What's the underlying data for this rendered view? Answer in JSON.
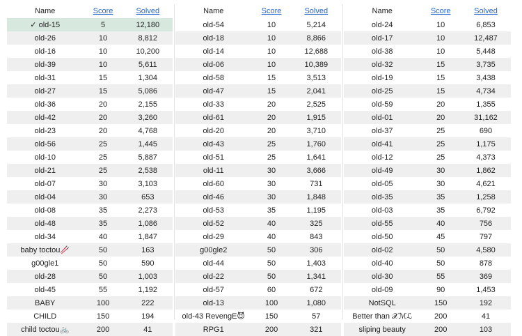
{
  "headers": {
    "name": "Name",
    "score": "Score",
    "solved": "Solved"
  },
  "columns": [
    [
      {
        "name": "✓ old-15",
        "score": "5",
        "solved": "12,180",
        "is_solved": true
      },
      {
        "name": "old-26",
        "score": "10",
        "solved": "8,812"
      },
      {
        "name": "old-16",
        "score": "10",
        "solved": "10,200"
      },
      {
        "name": "old-39",
        "score": "10",
        "solved": "5,611"
      },
      {
        "name": "old-31",
        "score": "15",
        "solved": "1,304"
      },
      {
        "name": "old-27",
        "score": "15",
        "solved": "5,086"
      },
      {
        "name": "old-36",
        "score": "20",
        "solved": "2,155"
      },
      {
        "name": "old-42",
        "score": "20",
        "solved": "3,260"
      },
      {
        "name": "old-23",
        "score": "20",
        "solved": "4,768"
      },
      {
        "name": "old-56",
        "score": "25",
        "solved": "1,445"
      },
      {
        "name": "old-10",
        "score": "25",
        "solved": "5,887"
      },
      {
        "name": "old-21",
        "score": "25",
        "solved": "2,538"
      },
      {
        "name": "old-07",
        "score": "30",
        "solved": "3,103"
      },
      {
        "name": "old-04",
        "score": "30",
        "solved": "653"
      },
      {
        "name": "old-08",
        "score": "35",
        "solved": "2,273"
      },
      {
        "name": "old-48",
        "score": "35",
        "solved": "1,086"
      },
      {
        "name": "old-34",
        "score": "40",
        "solved": "1,847"
      },
      {
        "name": "baby toctou🥢",
        "score": "50",
        "solved": "163"
      },
      {
        "name": "g00gle1",
        "score": "50",
        "solved": "590"
      },
      {
        "name": "old-28",
        "score": "50",
        "solved": "1,003"
      },
      {
        "name": "old-45",
        "score": "55",
        "solved": "1,192"
      },
      {
        "name": "BABY",
        "score": "100",
        "solved": "222"
      },
      {
        "name": "CHILD",
        "score": "150",
        "solved": "194"
      },
      {
        "name": "child toctou🚲",
        "score": "200",
        "solved": "41"
      }
    ],
    [
      {
        "name": "old-54",
        "score": "10",
        "solved": "5,214"
      },
      {
        "name": "old-18",
        "score": "10",
        "solved": "8,866"
      },
      {
        "name": "old-14",
        "score": "10",
        "solved": "12,688"
      },
      {
        "name": "old-06",
        "score": "10",
        "solved": "10,389"
      },
      {
        "name": "old-58",
        "score": "15",
        "solved": "3,513"
      },
      {
        "name": "old-47",
        "score": "15",
        "solved": "2,041"
      },
      {
        "name": "old-33",
        "score": "20",
        "solved": "2,525"
      },
      {
        "name": "old-61",
        "score": "20",
        "solved": "1,915"
      },
      {
        "name": "old-20",
        "score": "20",
        "solved": "3,710"
      },
      {
        "name": "old-43",
        "score": "25",
        "solved": "1,760"
      },
      {
        "name": "old-51",
        "score": "25",
        "solved": "1,641"
      },
      {
        "name": "old-11",
        "score": "30",
        "solved": "3,666"
      },
      {
        "name": "old-60",
        "score": "30",
        "solved": "731"
      },
      {
        "name": "old-46",
        "score": "30",
        "solved": "1,848"
      },
      {
        "name": "old-53",
        "score": "35",
        "solved": "1,195"
      },
      {
        "name": "old-52",
        "score": "40",
        "solved": "325"
      },
      {
        "name": "old-29",
        "score": "40",
        "solved": "843"
      },
      {
        "name": "g00gle2",
        "score": "50",
        "solved": "306"
      },
      {
        "name": "old-44",
        "score": "50",
        "solved": "1,403"
      },
      {
        "name": "old-22",
        "score": "50",
        "solved": "1,341"
      },
      {
        "name": "old-57",
        "score": "60",
        "solved": "672"
      },
      {
        "name": "old-13",
        "score": "100",
        "solved": "1,080"
      },
      {
        "name": "old-43 RevengE😈",
        "score": "150",
        "solved": "57"
      },
      {
        "name": "RPG1",
        "score": "200",
        "solved": "321"
      }
    ],
    [
      {
        "name": "old-24",
        "score": "10",
        "solved": "6,853"
      },
      {
        "name": "old-17",
        "score": "10",
        "solved": "12,487"
      },
      {
        "name": "old-38",
        "score": "10",
        "solved": "5,448"
      },
      {
        "name": "old-32",
        "score": "15",
        "solved": "3,735"
      },
      {
        "name": "old-19",
        "score": "15",
        "solved": "3,438"
      },
      {
        "name": "old-25",
        "score": "15",
        "solved": "4,734"
      },
      {
        "name": "old-59",
        "score": "20",
        "solved": "1,355"
      },
      {
        "name": "old-01",
        "score": "20",
        "solved": "31,162"
      },
      {
        "name": "old-37",
        "score": "25",
        "solved": "690"
      },
      {
        "name": "old-41",
        "score": "25",
        "solved": "1,175"
      },
      {
        "name": "old-12",
        "score": "25",
        "solved": "4,373"
      },
      {
        "name": "old-49",
        "score": "30",
        "solved": "1,862"
      },
      {
        "name": "old-05",
        "score": "30",
        "solved": "4,621"
      },
      {
        "name": "old-35",
        "score": "35",
        "solved": "1,258"
      },
      {
        "name": "old-03",
        "score": "35",
        "solved": "6,792"
      },
      {
        "name": "old-55",
        "score": "40",
        "solved": "756"
      },
      {
        "name": "old-50",
        "score": "45",
        "solved": "797"
      },
      {
        "name": "old-02",
        "score": "50",
        "solved": "4,580"
      },
      {
        "name": "old-40",
        "score": "50",
        "solved": "878"
      },
      {
        "name": "old-30",
        "score": "55",
        "solved": "369"
      },
      {
        "name": "old-09",
        "score": "90",
        "solved": "1,453"
      },
      {
        "name": "NotSQL",
        "score": "150",
        "solved": "192"
      },
      {
        "name": "Better than 𝒳ℳℒ",
        "score": "200",
        "solved": "41"
      },
      {
        "name": "sliping beauty",
        "score": "200",
        "solved": "103"
      }
    ]
  ]
}
